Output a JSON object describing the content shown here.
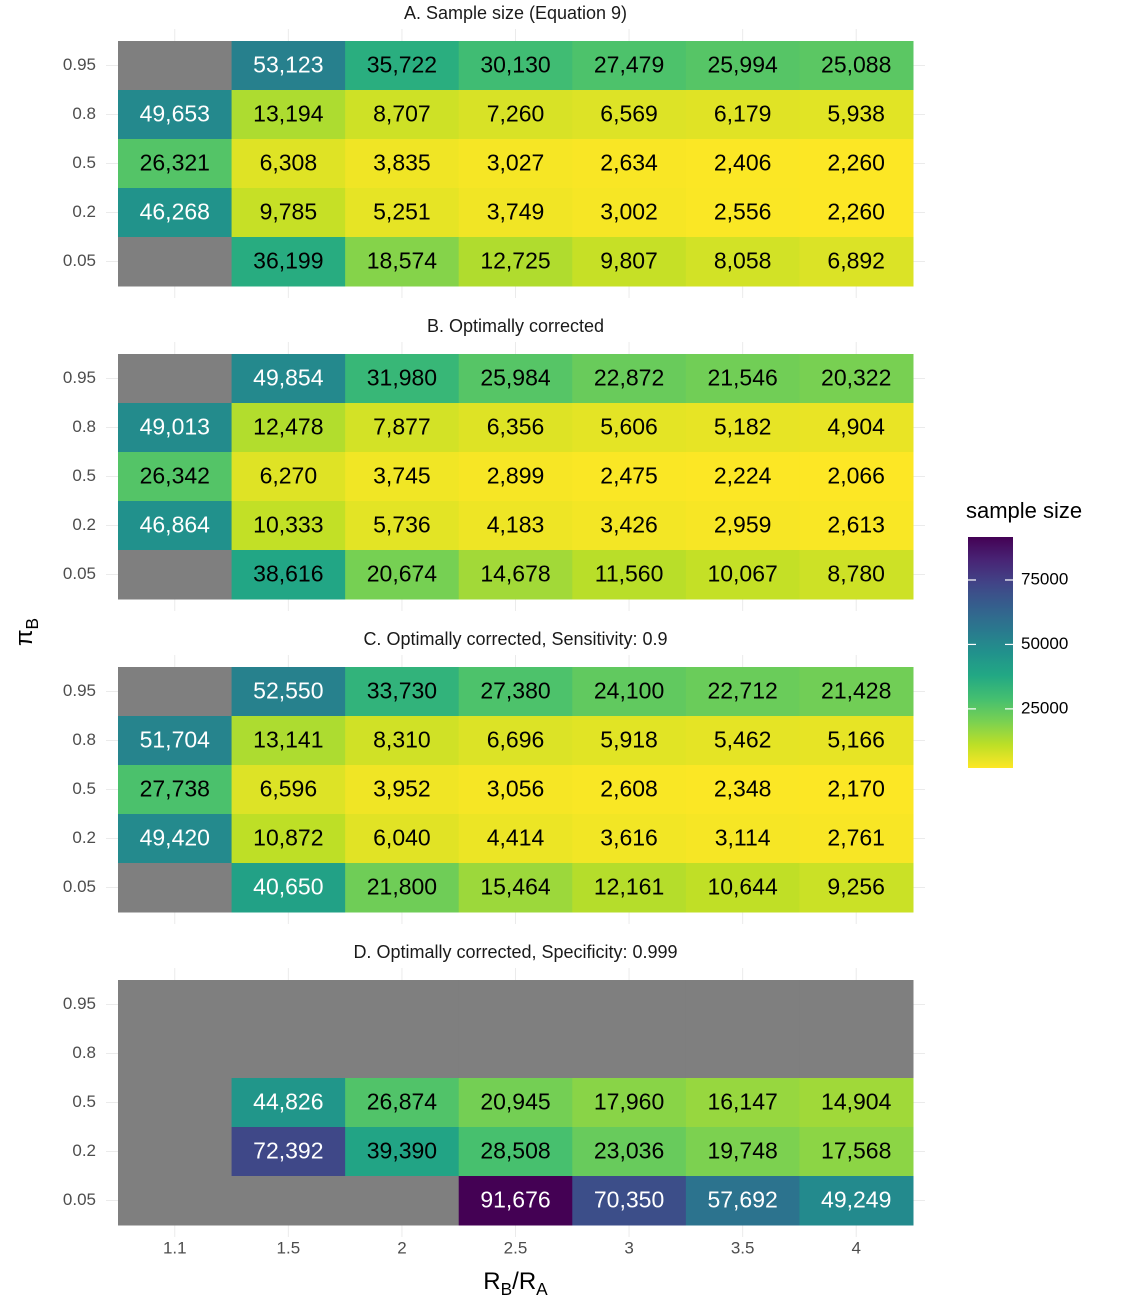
{
  "chart_data": {
    "type": "heatmap",
    "categories": [
      "1.1",
      "1.5",
      "2",
      "2.5",
      "3",
      "3.5",
      "4"
    ],
    "y_categories": [
      "0.95",
      "0.8",
      "0.5",
      "0.2",
      "0.05"
    ],
    "x_label": [
      "R",
      "B",
      "/R",
      "A"
    ],
    "y_label": [
      "π",
      "B"
    ],
    "legend_title": "sample size",
    "colorscale": "viridis",
    "reverse_scale": true,
    "na_color": "#7f7f7f",
    "clim": [
      2066,
      91676
    ],
    "cticks": [
      25000,
      50000,
      75000
    ],
    "grid": true,
    "panels": [
      {
        "title": "A. Sample size (Equation 9)",
        "values": [
          [
            null,
            53123,
            35722,
            30130,
            27479,
            25994,
            25088
          ],
          [
            49653,
            13194,
            8707,
            7260,
            6569,
            6179,
            5938
          ],
          [
            26321,
            6308,
            3835,
            3027,
            2634,
            2406,
            2260
          ],
          [
            46268,
            9785,
            5251,
            3749,
            3002,
            2556,
            2260
          ],
          [
            null,
            36199,
            18574,
            12725,
            9807,
            8058,
            6892
          ]
        ],
        "value_labels": [
          [
            null,
            "53,123",
            "35,722",
            "30,130",
            "27,479",
            "25,994",
            "25,088"
          ],
          [
            "49,653",
            "13,194",
            "8,707",
            "7,260",
            "6,569",
            "6,179",
            "5,938"
          ],
          [
            "26,321",
            "6,308",
            "3,835",
            "3,027",
            "2,634",
            "2,406",
            "2,260"
          ],
          [
            "46,268",
            "9,785",
            "5,251",
            "3,749",
            "3,002",
            "2,556",
            "2,260"
          ],
          [
            null,
            "36,199",
            "18,574",
            "12,725",
            "9,807",
            "8,058",
            "6,892"
          ]
        ]
      },
      {
        "title": "B. Optimally corrected",
        "values": [
          [
            null,
            49854,
            31980,
            25984,
            22872,
            21546,
            20322
          ],
          [
            49013,
            12478,
            7877,
            6356,
            5606,
            5182,
            4904
          ],
          [
            26342,
            6270,
            3745,
            2899,
            2475,
            2224,
            2066
          ],
          [
            46864,
            10333,
            5736,
            4183,
            3426,
            2959,
            2613
          ],
          [
            null,
            38616,
            20674,
            14678,
            11560,
            10067,
            8780
          ]
        ],
        "value_labels": [
          [
            null,
            "49,854",
            "31,980",
            "25,984",
            "22,872",
            "21,546",
            "20,322"
          ],
          [
            "49,013",
            "12,478",
            "7,877",
            "6,356",
            "5,606",
            "5,182",
            "4,904"
          ],
          [
            "26,342",
            "6,270",
            "3,745",
            "2,899",
            "2,475",
            "2,224",
            "2,066"
          ],
          [
            "46,864",
            "10,333",
            "5,736",
            "4,183",
            "3,426",
            "2,959",
            "2,613"
          ],
          [
            null,
            "38,616",
            "20,674",
            "14,678",
            "11,560",
            "10,067",
            "8,780"
          ]
        ]
      },
      {
        "title": "C. Optimally corrected, Sensitivity: 0.9",
        "values": [
          [
            null,
            52550,
            33730,
            27380,
            24100,
            22712,
            21428
          ],
          [
            51704,
            13141,
            8310,
            6696,
            5918,
            5462,
            5166
          ],
          [
            27738,
            6596,
            3952,
            3056,
            2608,
            2348,
            2170
          ],
          [
            49420,
            10872,
            6040,
            4414,
            3616,
            3114,
            2761
          ],
          [
            null,
            40650,
            21800,
            15464,
            12161,
            10644,
            9256
          ]
        ],
        "value_labels": [
          [
            null,
            "52,550",
            "33,730",
            "27,380",
            "24,100",
            "22,712",
            "21,428"
          ],
          [
            "51,704",
            "13,141",
            "8,310",
            "6,696",
            "5,918",
            "5,462",
            "5,166"
          ],
          [
            "27,738",
            "6,596",
            "3,952",
            "3,056",
            "2,608",
            "2,348",
            "2,170"
          ],
          [
            "49,420",
            "10,872",
            "6,040",
            "4,414",
            "3,616",
            "3,114",
            "2,761"
          ],
          [
            null,
            "40,650",
            "21,800",
            "15,464",
            "12,161",
            "10,644",
            "9,256"
          ]
        ]
      },
      {
        "title": "D. Optimally corrected, Specificity: 0.999",
        "values": [
          [
            null,
            null,
            null,
            null,
            null,
            null,
            null
          ],
          [
            null,
            null,
            null,
            null,
            null,
            null,
            null
          ],
          [
            null,
            44826,
            26874,
            20945,
            17960,
            16147,
            14904
          ],
          [
            null,
            72392,
            39390,
            28508,
            23036,
            19748,
            17568
          ],
          [
            null,
            null,
            null,
            91676,
            70350,
            57692,
            49249
          ]
        ],
        "value_labels": [
          [
            null,
            null,
            null,
            null,
            null,
            null,
            null
          ],
          [
            null,
            null,
            null,
            null,
            null,
            null,
            null
          ],
          [
            null,
            "44,826",
            "26,874",
            "20,945",
            "17,960",
            "16,147",
            "14,904"
          ],
          [
            null,
            "72,392",
            "39,390",
            "28,508",
            "23,036",
            "19,748",
            "17,568"
          ],
          [
            null,
            null,
            null,
            "91,676",
            "70,350",
            "57,692",
            "49,249"
          ]
        ]
      }
    ]
  }
}
